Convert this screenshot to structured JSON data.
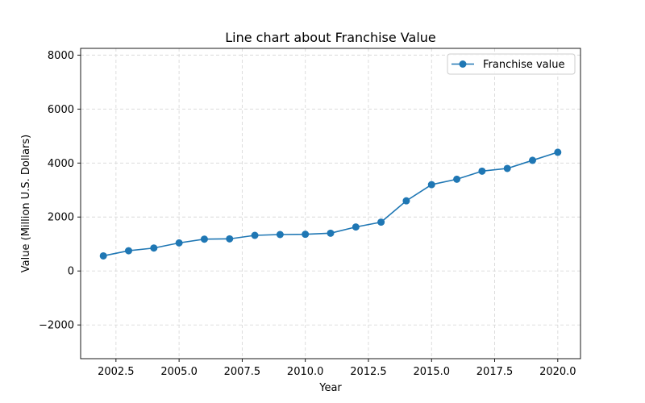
{
  "chart_data": {
    "type": "line",
    "title": "Line chart about Franchise Value",
    "xlabel": "Year",
    "ylabel": "Value (Million U.S. Dollars)",
    "xlim": [
      2001.1,
      2020.9
    ],
    "ylim": [
      -3250,
      8250
    ],
    "x_ticks": [
      2002.5,
      2005.0,
      2007.5,
      2010.0,
      2012.5,
      2015.0,
      2017.5,
      2020.0
    ],
    "x_tick_labels": [
      "2002.5",
      "2005.0",
      "2007.5",
      "2010.0",
      "2012.5",
      "2015.0",
      "2017.5",
      "2020.0"
    ],
    "y_ticks": [
      -2000,
      0,
      2000,
      4000,
      6000,
      8000
    ],
    "y_tick_labels": [
      "−2000",
      "0",
      "2000",
      "4000",
      "6000",
      "8000"
    ],
    "grid": true,
    "legend_position": "top-right",
    "series": [
      {
        "name": "Franchise value",
        "color": "#1f77b4",
        "x": [
          2002,
          2003,
          2004,
          2005,
          2006,
          2007,
          2008,
          2009,
          2010,
          2011,
          2012,
          2013,
          2014,
          2015,
          2016,
          2017,
          2018,
          2019,
          2020
        ],
        "y": [
          560,
          750,
          850,
          1040,
          1180,
          1190,
          1320,
          1350,
          1360,
          1400,
          1630,
          1810,
          2600,
          3200,
          3400,
          3700,
          3800,
          4100,
          4400
        ]
      }
    ]
  }
}
